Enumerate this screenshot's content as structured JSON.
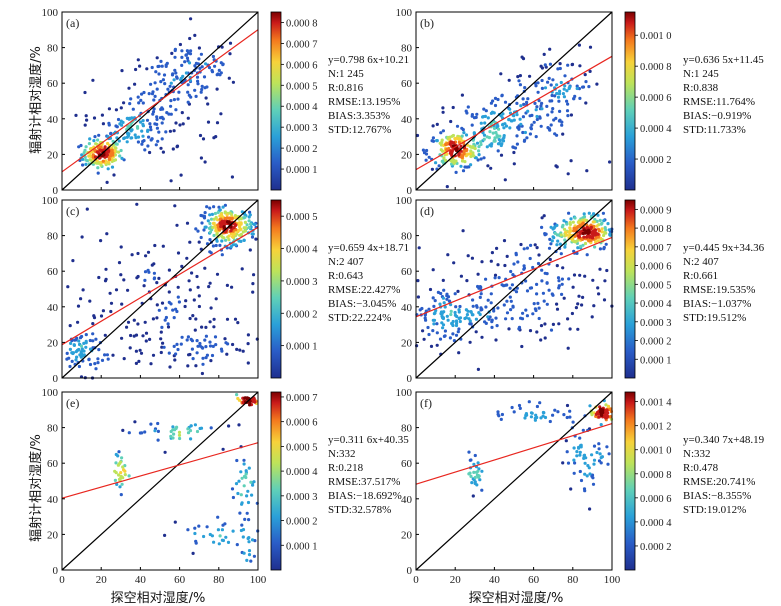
{
  "y_axis_label": "辐射计相对湿度/%",
  "x_axis_label": "探空相对湿度/%",
  "axis_ticks": [
    "0",
    "20",
    "40",
    "60",
    "80",
    "100"
  ],
  "colormap": [
    "#1f2f8e",
    "#2a5cc7",
    "#2aa0d8",
    "#5fd0b8",
    "#bde35a",
    "#f7d23a",
    "#f47a1e",
    "#c91a1a",
    "#7a0000"
  ],
  "chart_data": [
    {
      "panel": "(a)",
      "type": "scatter",
      "xlim": [
        0,
        100
      ],
      "ylim": [
        0,
        100
      ],
      "fit": {
        "slope": 0.7986,
        "intercept": 10.21
      },
      "stats": {
        "eq": "y=0.798 6x+10.21",
        "n": "N:1 245",
        "r": "R:0.816",
        "rmse": "RMSE:13.195%",
        "bias": "BIAS:3.353%",
        "std": "STD:12.767%"
      },
      "colorbar_ticks": [
        "0.000 8",
        "0.000 7",
        "0.000 6",
        "0.000 5",
        "0.000 4",
        "0.000 3",
        "0.000 2",
        "0.000 1"
      ],
      "colorbar_values": [
        0.0008,
        0.0007,
        0.0006,
        0.0005,
        0.0004,
        0.0003,
        0.0002,
        0.0001
      ],
      "colorbar_max": 0.00085,
      "clusters": [
        {
          "x": 20,
          "y": 20,
          "sx": 5,
          "sy": 4,
          "n": 160
        },
        {
          "x": 35,
          "y": 35,
          "sx": 8,
          "sy": 6,
          "n": 90
        },
        {
          "x": 55,
          "y": 55,
          "sx": 10,
          "sy": 10,
          "n": 90
        },
        {
          "x": 70,
          "y": 70,
          "sx": 10,
          "sy": 8,
          "n": 60
        },
        {
          "x": 50,
          "y": 35,
          "sx": 25,
          "sy": 18,
          "n": 70
        }
      ]
    },
    {
      "panel": "(b)",
      "type": "scatter",
      "xlim": [
        0,
        100
      ],
      "ylim": [
        0,
        100
      ],
      "fit": {
        "slope": 0.6365,
        "intercept": 11.45
      },
      "stats": {
        "eq": "y=0.636 5x+11.45",
        "n": "N:1 245",
        "r": "R:0.838",
        "rmse": "RMSE:11.764%",
        "bias": "BIAS:−0.919%",
        "std": "STD:11.733%"
      },
      "colorbar_ticks": [
        "0.001 0",
        "0.000 8",
        "0.000 6",
        "0.000 4",
        "0.000 2"
      ],
      "colorbar_values": [
        0.001,
        0.0008,
        0.0006,
        0.0004,
        0.0002
      ],
      "colorbar_max": 0.00115,
      "clusters": [
        {
          "x": 20,
          "y": 22,
          "sx": 7,
          "sy": 5,
          "n": 170
        },
        {
          "x": 40,
          "y": 35,
          "sx": 10,
          "sy": 8,
          "n": 110
        },
        {
          "x": 60,
          "y": 48,
          "sx": 10,
          "sy": 9,
          "n": 80
        },
        {
          "x": 75,
          "y": 60,
          "sx": 10,
          "sy": 10,
          "n": 50
        },
        {
          "x": 45,
          "y": 30,
          "sx": 25,
          "sy": 15,
          "n": 60
        }
      ]
    },
    {
      "panel": "(c)",
      "type": "scatter",
      "xlim": [
        0,
        100
      ],
      "ylim": [
        0,
        100
      ],
      "fit": {
        "slope": 0.6594,
        "intercept": 18.71
      },
      "stats": {
        "eq": "y=0.659 4x+18.71",
        "n": "N:2 407",
        "r": "R:0.643",
        "rmse": "RMSE:22.427%",
        "bias": "BIAS:−3.045%",
        "std": "STD:22.224%"
      },
      "colorbar_ticks": [
        "0.000 5",
        "0.000 4",
        "0.000 3",
        "0.000 2",
        "0.000 1"
      ],
      "colorbar_values": [
        0.0005,
        0.0004,
        0.0003,
        0.0002,
        0.0001
      ],
      "colorbar_max": 0.00055,
      "clusters": [
        {
          "x": 85,
          "y": 85,
          "sx": 7,
          "sy": 5,
          "n": 260
        },
        {
          "x": 10,
          "y": 15,
          "sx": 5,
          "sy": 6,
          "n": 70
        },
        {
          "x": 50,
          "y": 40,
          "sx": 25,
          "sy": 22,
          "n": 180
        },
        {
          "x": 70,
          "y": 17,
          "sx": 15,
          "sy": 4,
          "n": 50
        }
      ]
    },
    {
      "panel": "(d)",
      "type": "scatter",
      "xlim": [
        0,
        100
      ],
      "ylim": [
        0,
        100
      ],
      "fit": {
        "slope": 0.4459,
        "intercept": 34.36
      },
      "stats": {
        "eq": "y=0.445 9x+34.36",
        "n": "N:2 407",
        "r": "R:0.661",
        "rmse": "RMSE:19.535%",
        "bias": "BIAS:−1.037%",
        "std": "STD:19.512%"
      },
      "colorbar_ticks": [
        "0.000 9",
        "0.000 8",
        "0.000 7",
        "0.000 6",
        "0.000 5",
        "0.000 4",
        "0.000 3",
        "0.000 2",
        "0.000 1"
      ],
      "colorbar_values": [
        0.0009,
        0.0008,
        0.0007,
        0.0006,
        0.0005,
        0.0004,
        0.0003,
        0.0002,
        0.0001
      ],
      "colorbar_max": 0.00095,
      "clusters": [
        {
          "x": 85,
          "y": 82,
          "sx": 8,
          "sy": 5,
          "n": 260
        },
        {
          "x": 20,
          "y": 35,
          "sx": 12,
          "sy": 8,
          "n": 140
        },
        {
          "x": 55,
          "y": 50,
          "sx": 22,
          "sy": 15,
          "n": 180
        }
      ]
    },
    {
      "panel": "(e)",
      "type": "scatter",
      "xlim": [
        0,
        100
      ],
      "ylim": [
        0,
        100
      ],
      "fit": {
        "slope": 0.3116,
        "intercept": 40.35
      },
      "stats": {
        "eq": "y=0.311 6x+40.35",
        "n": "N:332",
        "r": "R:0.218",
        "rmse": "RMSE:37.517%",
        "bias": "BIAS:−18.692%",
        "std": "STD:32.578%"
      },
      "colorbar_ticks": [
        "0.000 7",
        "0.000 6",
        "0.000 5",
        "0.000 4",
        "0.000 3",
        "0.000 2",
        "0.000 1"
      ],
      "colorbar_values": [
        0.0007,
        0.0006,
        0.0005,
        0.0004,
        0.0003,
        0.0002,
        0.0001
      ],
      "colorbar_max": 0.00072,
      "clusters": [
        {
          "x": 95,
          "y": 95,
          "sx": 3,
          "sy": 1,
          "n": 40
        },
        {
          "x": 30,
          "y": 55,
          "sx": 1.5,
          "sy": 5,
          "n": 30
        },
        {
          "x": 55,
          "y": 78,
          "sx": 12,
          "sy": 4,
          "n": 40
        },
        {
          "x": 93,
          "y": 35,
          "sx": 4,
          "sy": 22,
          "n": 60
        },
        {
          "x": 75,
          "y": 20,
          "sx": 10,
          "sy": 5,
          "n": 25
        }
      ]
    },
    {
      "panel": "(f)",
      "type": "scatter",
      "xlim": [
        0,
        100
      ],
      "ylim": [
        0,
        100
      ],
      "fit": {
        "slope": 0.3407,
        "intercept": 48.19
      },
      "stats": {
        "eq": "y=0.340 7x+48.19",
        "n": "N:332",
        "r": "R:0.478",
        "rmse": "RMSE:20.741%",
        "bias": "BIAS:−8.355%",
        "std": "STD:19.012%"
      },
      "colorbar_ticks": [
        "0.001 4",
        "0.001 2",
        "0.001 0",
        "0.000 8",
        "0.000 6",
        "0.000 4",
        "0.000 2"
      ],
      "colorbar_values": [
        0.0014,
        0.0012,
        0.001,
        0.0008,
        0.0006,
        0.0004,
        0.0002
      ],
      "colorbar_max": 0.00148,
      "clusters": [
        {
          "x": 95,
          "y": 88,
          "sx": 3,
          "sy": 2,
          "n": 60
        },
        {
          "x": 30,
          "y": 55,
          "sx": 1.5,
          "sy": 6,
          "n": 30
        },
        {
          "x": 60,
          "y": 88,
          "sx": 12,
          "sy": 3,
          "n": 40
        },
        {
          "x": 88,
          "y": 65,
          "sx": 6,
          "sy": 10,
          "n": 60
        }
      ]
    }
  ]
}
